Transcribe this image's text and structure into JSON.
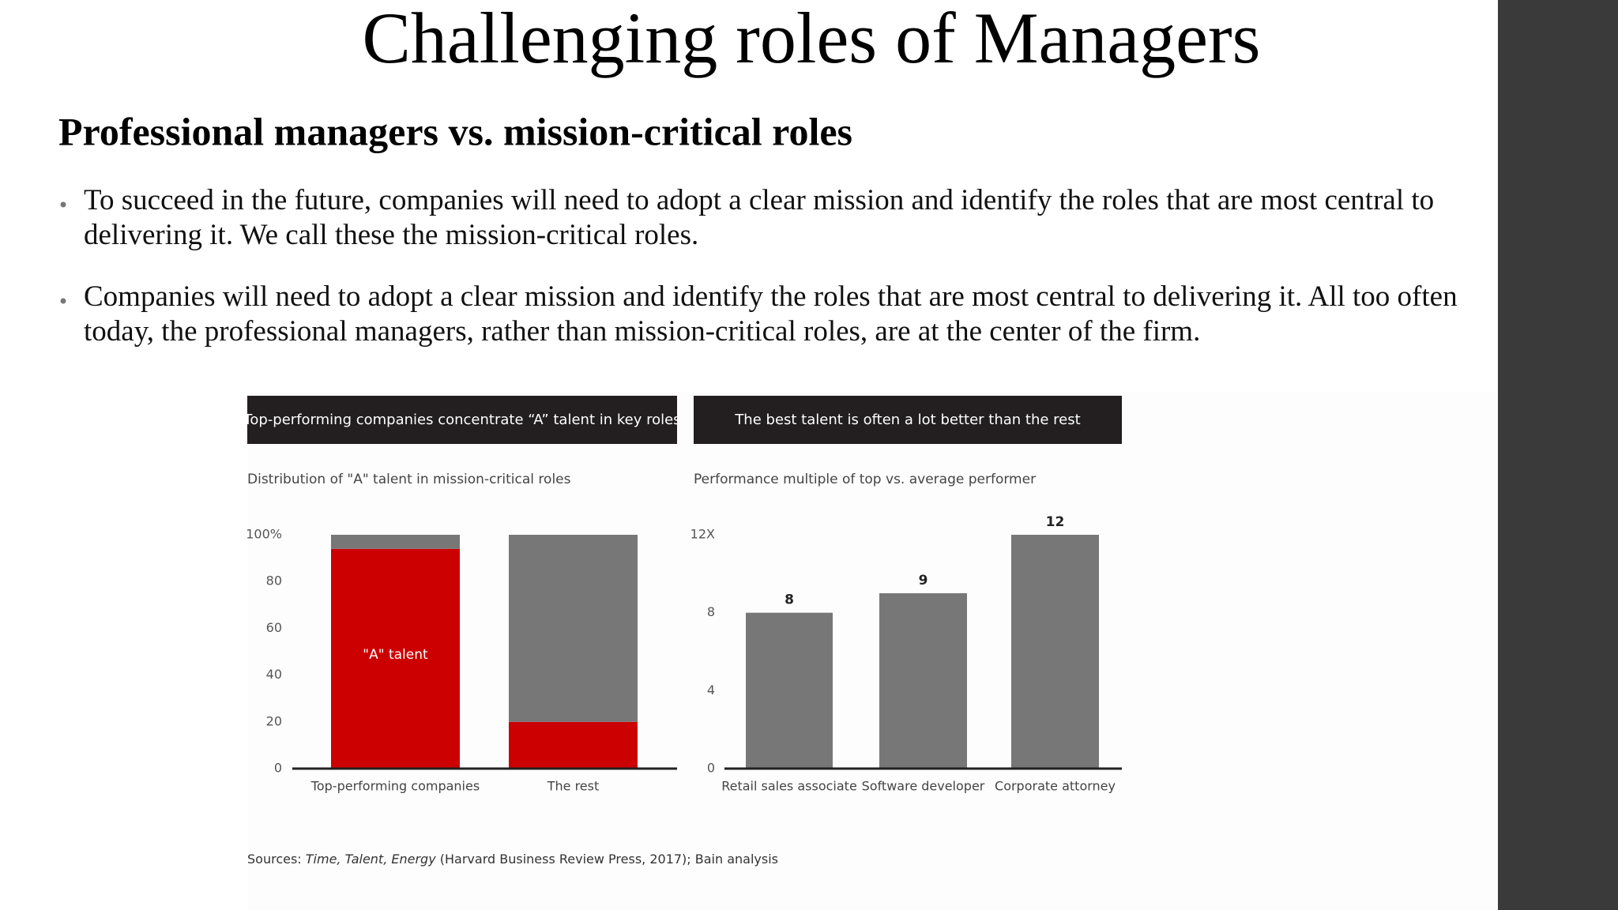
{
  "slide": {
    "title": "Challenging roles of Managers",
    "subtitle": "Professional managers vs. mission-critical roles",
    "bullets": [
      "To succeed in the future, companies will need to adopt a clear mission and identify the roles that are most central to delivering it. We call these the mission-critical roles.",
      "Companies will need to adopt a clear mission and identify the roles that are most central to delivering it. All too often today, the professional managers, rather than mission-critical roles, are at the center of the firm."
    ]
  },
  "chart_data": [
    {
      "type": "stacked_bar",
      "title": "Top-performing companies concentrate “A” talent in key roles",
      "subtitle": "Distribution of \"A\" talent in mission-critical roles",
      "categories": [
        "Top-performing companies",
        "The rest"
      ],
      "series": [
        {
          "name": "\"A\" talent",
          "color": "#cc0000",
          "values": [
            94,
            20
          ]
        },
        {
          "color": "#777777",
          "values": [
            6,
            80
          ]
        }
      ],
      "ylim": [
        0,
        100
      ],
      "yticks": [
        0,
        20,
        40,
        60,
        80,
        {
          "value": 100,
          "label": "100%"
        }
      ]
    },
    {
      "type": "bar",
      "title": "The best talent is often a lot better than the rest",
      "subtitle": "Performance multiple of top vs. average performer",
      "categories": [
        "Retail sales associate",
        "Software developer",
        "Corporate attorney"
      ],
      "values": [
        8,
        9,
        12
      ],
      "color": "#777777",
      "ylim": [
        0,
        12
      ],
      "yticks": [
        0,
        4,
        8,
        {
          "value": 12,
          "label": "12X"
        }
      ]
    }
  ],
  "source": {
    "prefix": "Sources:",
    "italic": "Time, Talent, Energy",
    "rest": "(Harvard Business Review Press, 2017); Bain analysis"
  }
}
